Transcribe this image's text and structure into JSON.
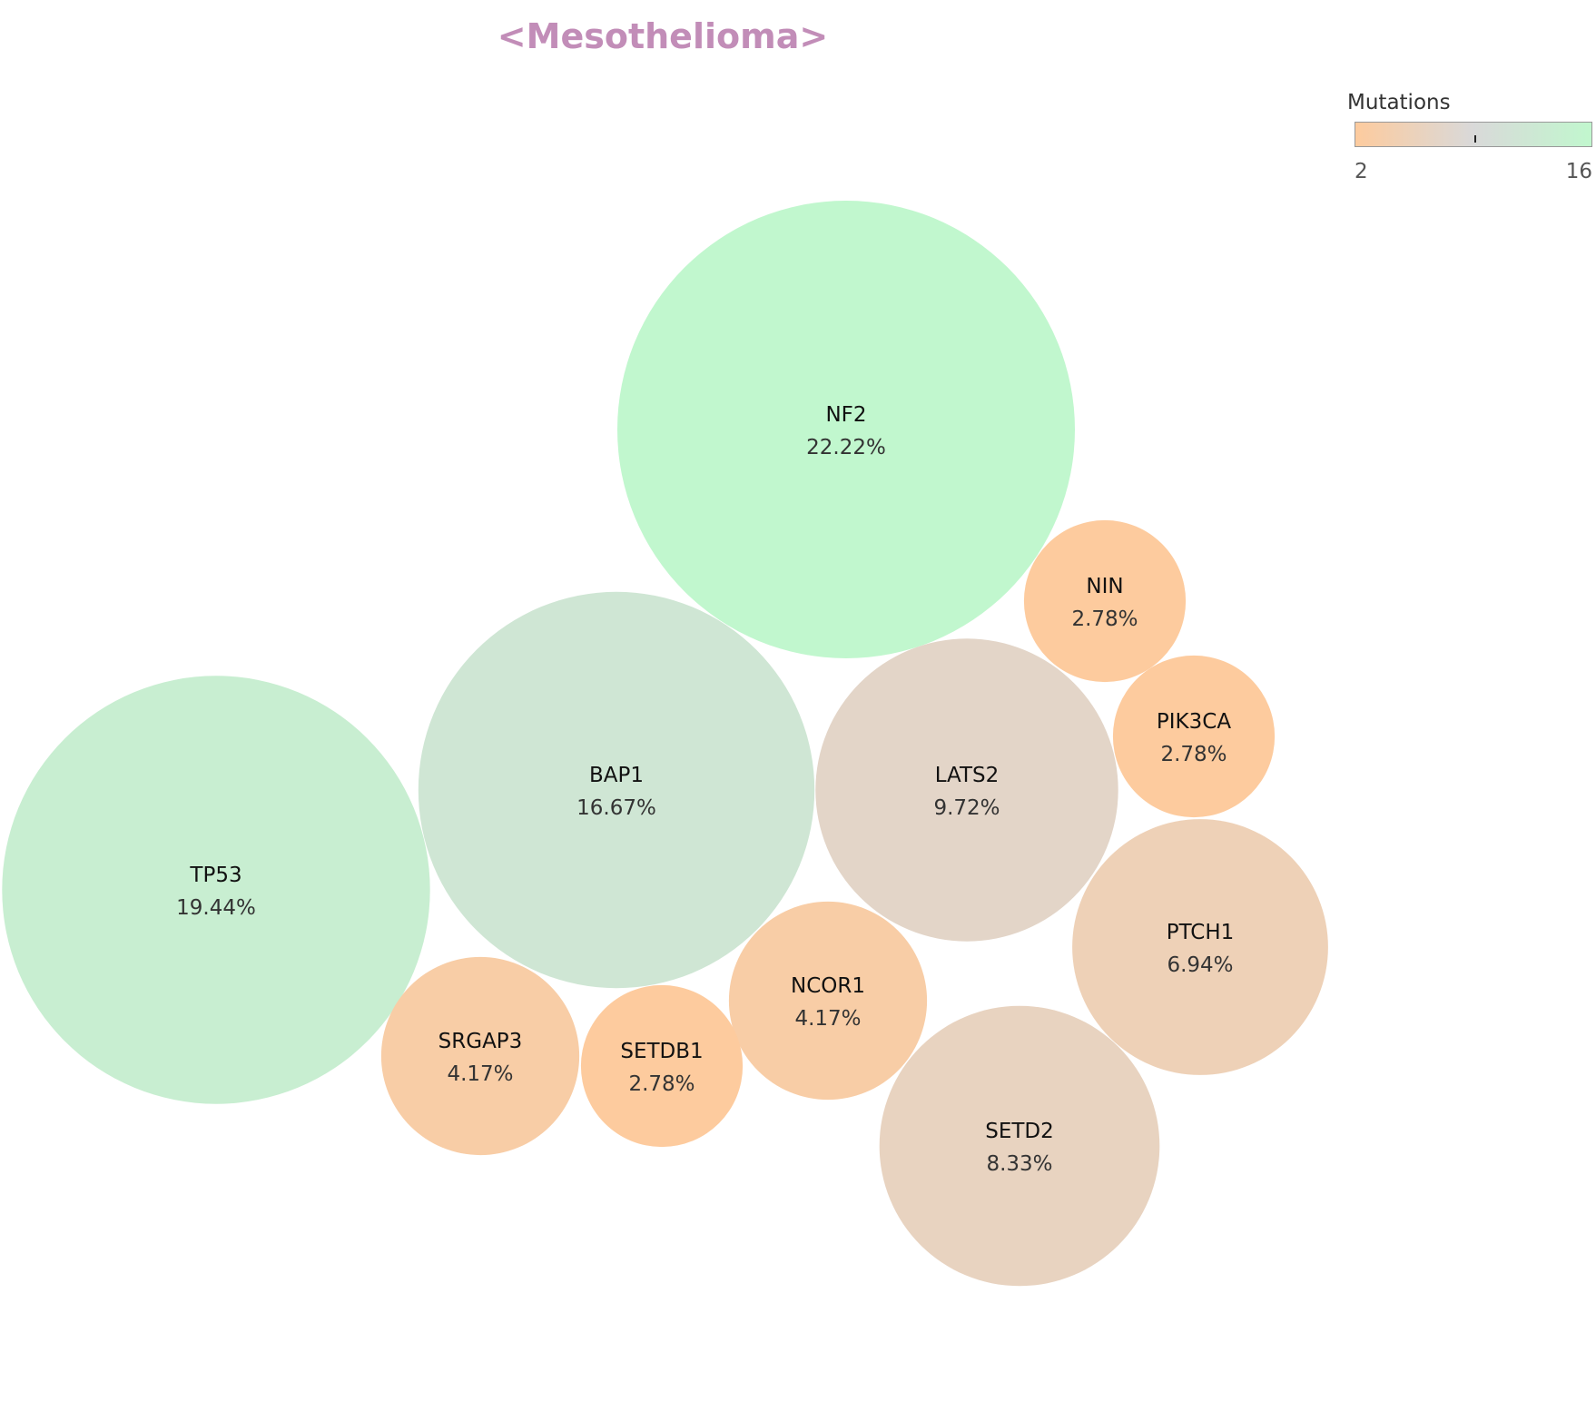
{
  "chart_data": {
    "type": "bubble",
    "title": "<Mesothelioma>",
    "legend": {
      "title": "Mutations",
      "min": 2,
      "max": 16,
      "min_label": "2",
      "max_label": "16",
      "colors": [
        "#fdcb9e",
        "#d9d9d9",
        "#c1f7ce"
      ]
    },
    "bubbles": [
      {
        "gene": "NF2",
        "percent_label": "22.22%",
        "mutations": 16
      },
      {
        "gene": "TP53",
        "percent_label": "19.44%",
        "mutations": 14
      },
      {
        "gene": "BAP1",
        "percent_label": "16.67%",
        "mutations": 12
      },
      {
        "gene": "LATS2",
        "percent_label": "9.72%",
        "mutations": 7
      },
      {
        "gene": "SETD2",
        "percent_label": "8.33%",
        "mutations": 6
      },
      {
        "gene": "PTCH1",
        "percent_label": "6.94%",
        "mutations": 5
      },
      {
        "gene": "NCOR1",
        "percent_label": "4.17%",
        "mutations": 3
      },
      {
        "gene": "SRGAP3",
        "percent_label": "4.17%",
        "mutations": 3
      },
      {
        "gene": "NIN",
        "percent_label": "2.78%",
        "mutations": 2
      },
      {
        "gene": "PIK3CA",
        "percent_label": "2.78%",
        "mutations": 2
      },
      {
        "gene": "SETDB1",
        "percent_label": "2.78%",
        "mutations": 2
      }
    ]
  }
}
